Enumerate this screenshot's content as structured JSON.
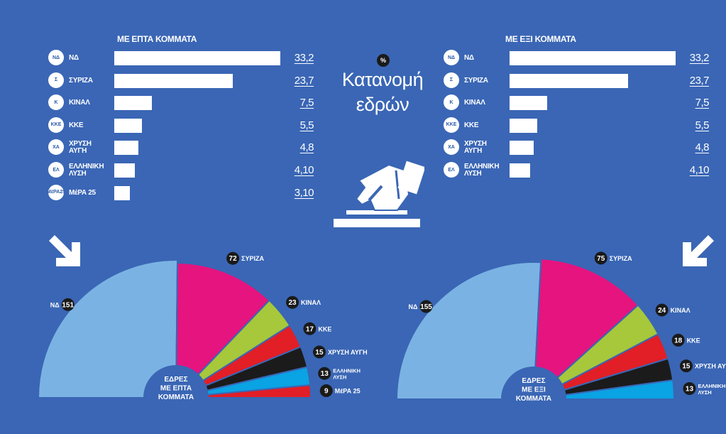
{
  "center": {
    "badge": "%",
    "title_line1": "Κατανομή",
    "title_line2": "εδρών"
  },
  "left_panel": {
    "title": "ΜΕ ΕΠΤΑ ΚΟΜΜΑΤΑ",
    "parties": [
      {
        "name": "ΝΔ",
        "value": "33,2",
        "logo": "ΝΔ"
      },
      {
        "name": "ΣΥΡΙΖΑ",
        "value": "23,7",
        "logo": "Σ"
      },
      {
        "name": "ΚΙΝΑΛ",
        "value": "7,5",
        "logo": "Κ"
      },
      {
        "name": "ΚΚΕ",
        "value": "5,5",
        "logo": "ΚΚΕ"
      },
      {
        "name": "ΧΡΥΣΗ\nΑΥΓΗ",
        "value": "4,8",
        "logo": "ΧΑ"
      },
      {
        "name": "ΕΛΛΗΝΙΚΗ\nΛΥΣΗ",
        "value": "4,10",
        "logo": "ΕΛ"
      },
      {
        "name": "ΜέΡΑ 25",
        "value": "3,10",
        "logo": "ΜέΡΑ25"
      }
    ]
  },
  "right_panel": {
    "title": "ΜΕ ΕΞΙ ΚΟΜΜΑΤΑ",
    "parties": [
      {
        "name": "ΝΔ",
        "value": "33,2",
        "logo": "ΝΔ"
      },
      {
        "name": "ΣΥΡΙΖΑ",
        "value": "23,7",
        "logo": "Σ"
      },
      {
        "name": "ΚΙΝΑΛ",
        "value": "7,5",
        "logo": "Κ"
      },
      {
        "name": "ΚΚΕ",
        "value": "5,5",
        "logo": "ΚΚΕ"
      },
      {
        "name": "ΧΡΥΣΗ\nΑΥΓΗ",
        "value": "4,8",
        "logo": "ΧΑ"
      },
      {
        "name": "ΕΛΛΗΝΙΚΗ\nΛΥΣΗ",
        "value": "4,10",
        "logo": "ΕΛ"
      }
    ]
  },
  "icons": [
    "arrow-down-right-icon",
    "arrow-down-left-icon",
    "ballot-hand-icon"
  ],
  "colors": {
    "background": "#3a66b5",
    "ND": "#7ab3e3",
    "SYRIZA": "#e5147f",
    "KINAL": "#a6c83a",
    "KKE": "#e21e26",
    "XA": "#1b1b1b",
    "EL": "#0aa3e3",
    "MERA25": "#e21e26"
  },
  "chart_data": [
    {
      "type": "bar",
      "title": "ΜΕ ΕΠΤΑ ΚΟΜΜΑΤΑ",
      "categories": [
        "ΝΔ",
        "ΣΥΡΙΖΑ",
        "ΚΙΝΑΛ",
        "ΚΚΕ",
        "ΧΡΥΣΗ ΑΥΓΗ",
        "ΕΛΛΗΝΙΚΗ ΛΥΣΗ",
        "ΜέΡΑ 25"
      ],
      "values": [
        33.2,
        23.7,
        7.5,
        5.5,
        4.8,
        4.1,
        3.1
      ]
    },
    {
      "type": "bar",
      "title": "ΜΕ ΕΞΙ ΚΟΜΜΑΤΑ",
      "categories": [
        "ΝΔ",
        "ΣΥΡΙΖΑ",
        "ΚΙΝΑΛ",
        "ΚΚΕ",
        "ΧΡΥΣΗ ΑΥΓΗ",
        "ΕΛΛΗΝΙΚΗ ΛΥΣΗ"
      ],
      "values": [
        33.2,
        23.7,
        7.5,
        5.5,
        4.8,
        4.1
      ]
    },
    {
      "type": "pie",
      "subtype": "parliament-semicircle",
      "title": "ΕΔΡΕΣ ΜΕ ΕΠΤΑ ΚΟΜΜΑΤΑ",
      "slices": [
        {
          "label": "ΝΔ",
          "value": 151,
          "color": "#7ab3e3"
        },
        {
          "label": "ΣΥΡΙΖΑ",
          "value": 72,
          "color": "#e5147f"
        },
        {
          "label": "ΚΙΝΑΛ",
          "value": 23,
          "color": "#a6c83a"
        },
        {
          "label": "ΚΚΕ",
          "value": 17,
          "color": "#e21e26"
        },
        {
          "label": "ΧΡΥΣΗ ΑΥΓΗ",
          "value": 15,
          "color": "#1b1b1b"
        },
        {
          "label": "ΕΛΛΗΝΙΚΗ ΛΥΣΗ",
          "value": 13,
          "color": "#0aa3e3"
        },
        {
          "label": "ΜέΡΑ 25",
          "value": 9,
          "color": "#e21e26"
        }
      ]
    },
    {
      "type": "pie",
      "subtype": "parliament-semicircle",
      "title": "ΕΔΡΕΣ ΜΕ ΕΞΙ ΚΟΜΜΑΤΑ",
      "slices": [
        {
          "label": "ΝΔ",
          "value": 155,
          "color": "#7ab3e3"
        },
        {
          "label": "ΣΥΡΙΖΑ",
          "value": 75,
          "color": "#e5147f"
        },
        {
          "label": "ΚΙΝΑΛ",
          "value": 24,
          "color": "#a6c83a"
        },
        {
          "label": "ΚΚΕ",
          "value": 18,
          "color": "#e21e26"
        },
        {
          "label": "ΧΡΥΣΗ ΑΥΓΗ",
          "value": 15,
          "color": "#1b1b1b"
        },
        {
          "label": "ΕΛΛΗΝΙΚΗ ΛΥΣΗ",
          "value": 13,
          "color": "#0aa3e3"
        }
      ]
    }
  ],
  "semicircle_labels": [
    [
      "ΕΔΡΕΣ",
      "ΜΕ ΕΠΤΑ",
      "ΚΟΜΜΑΤΑ"
    ],
    [
      "ΕΔΡΕΣ",
      "ΜΕ ΕΞΙ",
      "ΚΟΜΜΑΤΑ"
    ]
  ]
}
